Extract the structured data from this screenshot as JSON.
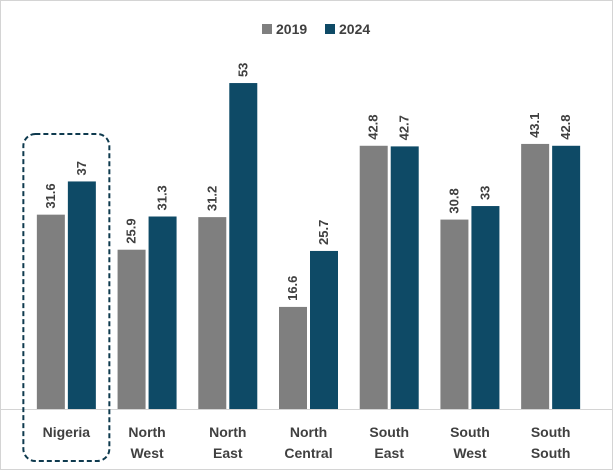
{
  "chart_data": {
    "type": "bar",
    "categories": [
      [
        "Nigeria"
      ],
      [
        "North",
        "West"
      ],
      [
        "North",
        "East"
      ],
      [
        "North",
        "Central"
      ],
      [
        "South",
        "East"
      ],
      [
        "South",
        "West"
      ],
      [
        "South",
        "South"
      ]
    ],
    "series": [
      {
        "name": "2019",
        "color": "#7f7f7f",
        "values": [
          31.6,
          25.9,
          31.2,
          16.6,
          42.8,
          30.8,
          43.1
        ]
      },
      {
        "name": "2024",
        "color": "#0e4a66",
        "values": [
          37,
          31.3,
          53,
          25.7,
          42.7,
          33,
          42.8
        ]
      }
    ],
    "value_labels": [
      [
        "31.6",
        "25.9",
        "31.2",
        "16.6",
        "42.8",
        "30.8",
        "43.1"
      ],
      [
        "37",
        "31.3",
        "53",
        "25.7",
        "42.7",
        "33",
        "42.8"
      ]
    ],
    "ylim": [
      0,
      60
    ],
    "legend_position": "top-center",
    "highlighted_category": "Nigeria",
    "grid": false
  }
}
